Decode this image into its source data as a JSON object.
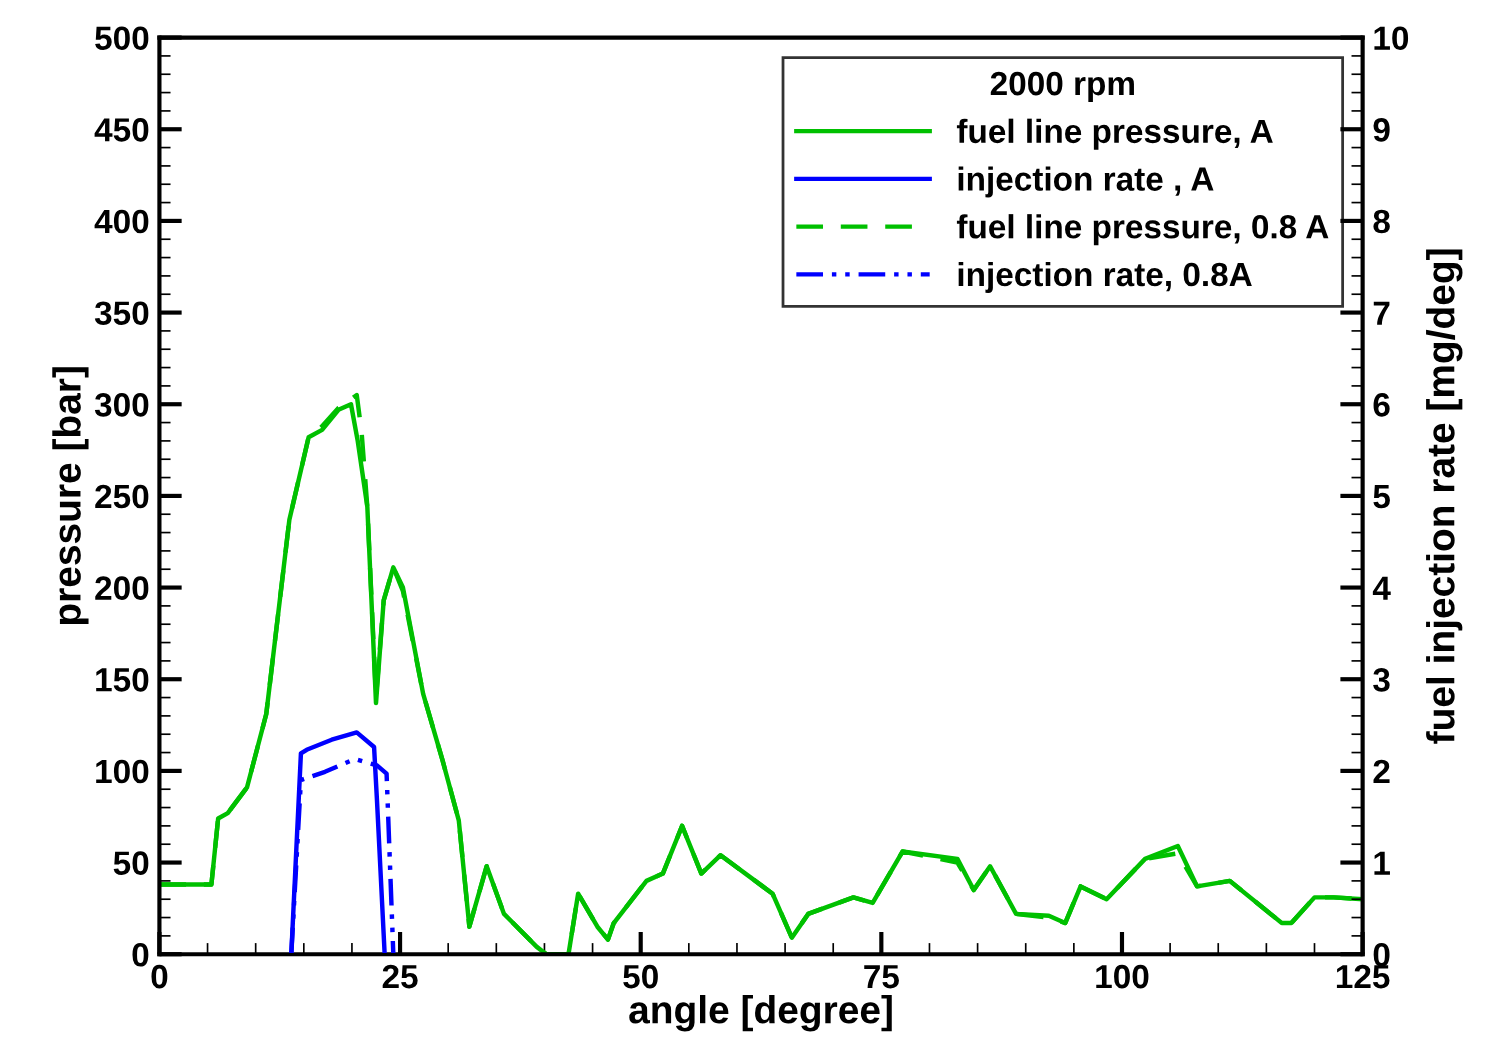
{
  "chart_data": {
    "type": "line",
    "xlabel": "angle [degree]",
    "ylabel": "pressure [bar]",
    "y2label": "fuel injection rate [mg/deg]",
    "legend_title": "2000 rpm",
    "xlim": [
      0,
      125
    ],
    "xticks": [
      0,
      25,
      50,
      75,
      100,
      125
    ],
    "ylim": [
      0,
      500
    ],
    "yticks": [
      0,
      50,
      100,
      150,
      200,
      250,
      300,
      350,
      400,
      450,
      500
    ],
    "y2lim": [
      0,
      10
    ],
    "y2ticks": [
      0,
      1,
      2,
      3,
      4,
      5,
      6,
      7,
      8,
      9,
      10
    ],
    "grid": false,
    "legend": "top right",
    "marker": "none",
    "series": [
      {
        "name": "fuel line pressure, A",
        "color": "#00c000",
        "line_style": "solid",
        "x": [
          0,
          5.4,
          6.1,
          7.1,
          9.1,
          11.1,
          13.5,
          15.5,
          16.9,
          18.6,
          19.9,
          20.6,
          21.6,
          22.5,
          23.3,
          24.3,
          25.3,
          27.4,
          29.4,
          31.1,
          32.2,
          34,
          35.8,
          39.2,
          40.2,
          42.5,
          43.5,
          45.5,
          46.6,
          47.2,
          50.6,
          52.3,
          54.3,
          56.3,
          58.3,
          63.7,
          65.7,
          67.4,
          72.1,
          74.1,
          77.2,
          82.9,
          84.6,
          86.3,
          89,
          92.4,
          94.1,
          95.7,
          98.4,
          102.4,
          105.8,
          107.8,
          111.2,
          116.6,
          117.6,
          120,
          122,
          125
        ],
        "values": [
          38,
          38,
          74,
          77,
          91,
          131,
          237,
          282,
          286,
          297,
          300,
          280,
          244,
          137,
          193,
          211,
          200,
          142,
          106,
          73,
          15,
          48,
          22,
          4,
          0,
          0,
          33,
          15,
          8,
          17,
          40,
          44,
          70,
          44,
          54,
          33,
          9,
          22,
          31,
          28,
          56,
          52,
          35,
          48,
          22,
          21,
          17,
          37,
          30,
          52,
          59,
          37,
          40,
          17,
          17,
          31,
          31,
          30
        ]
      },
      {
        "name": "injection rate , A",
        "color": "#0000ff",
        "line_style": "solid",
        "axis": "y2",
        "x": [
          13.7,
          14.7,
          15.3,
          17.9,
          20.5,
          22.3,
          22.6,
          23.4
        ],
        "values": [
          0,
          2.19,
          2.23,
          2.34,
          2.42,
          2.26,
          1.68,
          0
        ]
      },
      {
        "name": "fuel line pressure, 0.8 A",
        "color": "#00c000",
        "line_style": "dashed",
        "x": [
          0,
          5.4,
          6.1,
          7.1,
          9.1,
          11.1,
          13.5,
          15.5,
          16.9,
          18.6,
          20.5,
          21,
          21.6,
          22.5,
          23.3,
          24.3,
          25.3,
          27.4,
          29.4,
          31.1,
          32.2,
          34,
          35.8,
          39.2,
          40.2,
          42.5,
          43.5,
          45.5,
          46.6,
          47.2,
          50.6,
          52.3,
          54.3,
          56.3,
          58.3,
          63.7,
          65.7,
          67.4,
          72.1,
          74.1,
          77.2,
          82.9,
          84.6,
          86.3,
          89,
          92.4,
          94.1,
          95.7,
          98.4,
          102.4,
          105.8,
          107.8,
          111.2,
          116.6,
          117.6,
          120,
          122,
          125
        ],
        "values": [
          38,
          38,
          74,
          77,
          91,
          131,
          237,
          282,
          288,
          298,
          305,
          285,
          244,
          140,
          193,
          211,
          198,
          142,
          106,
          73,
          15,
          48,
          22,
          4,
          0,
          0,
          33,
          15,
          8,
          17,
          40,
          44,
          70,
          44,
          54,
          33,
          9,
          22,
          31,
          28,
          56,
          50,
          35,
          48,
          22,
          20,
          17,
          37,
          30,
          52,
          55,
          37,
          40,
          17,
          17,
          31,
          31,
          30
        ]
      },
      {
        "name": "injection rate, 0.8A",
        "color": "#0000ff",
        "line_style": "dashdotdot",
        "axis": "y2",
        "x": [
          13.7,
          14.7,
          17.2,
          20.3,
          22.6,
          23.6,
          24.3
        ],
        "values": [
          0,
          1.9,
          1.99,
          2.13,
          2.06,
          1.97,
          0
        ]
      }
    ]
  }
}
